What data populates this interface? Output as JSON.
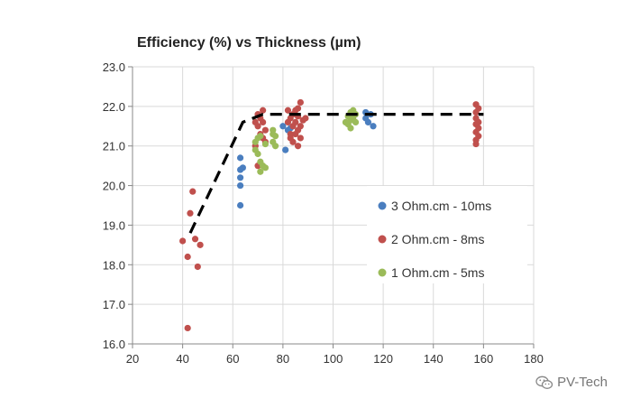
{
  "chart_data": {
    "type": "scatter",
    "title": "Efficiency (%) vs Thickness (µm)",
    "xlabel": "",
    "ylabel": "",
    "xlim": [
      20,
      180
    ],
    "ylim": [
      16.0,
      23.0
    ],
    "x_ticks": [
      "20",
      "40",
      "60",
      "80",
      "100",
      "120",
      "140",
      "160",
      "180"
    ],
    "y_ticks": [
      "16.0",
      "17.0",
      "18.0",
      "19.0",
      "20.0",
      "21.0",
      "22.0",
      "23.0"
    ],
    "grid": true,
    "legend_position": "right",
    "series": [
      {
        "name": "3 Ohm.cm - 10ms",
        "color": "#4a7ebf",
        "points": [
          [
            63,
            20.7
          ],
          [
            63,
            20.4
          ],
          [
            64,
            20.45
          ],
          [
            63,
            20.2
          ],
          [
            63,
            20.0
          ],
          [
            63,
            19.5
          ],
          [
            80,
            21.5
          ],
          [
            81,
            20.9
          ],
          [
            82,
            21.4
          ],
          [
            83,
            21.45
          ],
          [
            113,
            21.85
          ],
          [
            113,
            21.7
          ],
          [
            114,
            21.6
          ],
          [
            115,
            21.8
          ],
          [
            116,
            21.5
          ]
        ]
      },
      {
        "name": "2 Ohm.cm - 8ms",
        "color": "#c0504d",
        "points": [
          [
            40,
            18.6
          ],
          [
            42,
            18.2
          ],
          [
            43,
            19.3
          ],
          [
            44,
            19.85
          ],
          [
            45,
            18.65
          ],
          [
            46,
            17.95
          ],
          [
            47,
            18.5
          ],
          [
            42,
            16.4
          ],
          [
            69,
            21.0
          ],
          [
            69,
            21.6
          ],
          [
            70,
            21.8
          ],
          [
            70,
            21.5
          ],
          [
            71,
            21.3
          ],
          [
            71,
            21.7
          ],
          [
            72,
            21.2
          ],
          [
            72,
            21.6
          ],
          [
            73,
            21.1
          ],
          [
            70,
            20.5
          ],
          [
            72,
            21.9
          ],
          [
            73,
            21.4
          ],
          [
            82,
            21.6
          ],
          [
            82,
            21.9
          ],
          [
            83,
            21.3
          ],
          [
            83,
            21.7
          ],
          [
            84,
            21.5
          ],
          [
            84,
            21.8
          ],
          [
            84,
            21.1
          ],
          [
            85,
            21.6
          ],
          [
            85,
            21.9
          ],
          [
            85,
            21.3
          ],
          [
            86,
            21.4
          ],
          [
            86,
            21.75
          ],
          [
            86,
            21.95
          ],
          [
            87,
            21.5
          ],
          [
            87,
            21.2
          ],
          [
            87,
            22.1
          ],
          [
            88,
            21.65
          ],
          [
            89,
            21.7
          ],
          [
            83,
            21.2
          ],
          [
            86,
            21.0
          ],
          [
            157,
            22.05
          ],
          [
            157,
            21.85
          ],
          [
            157,
            21.7
          ],
          [
            157,
            21.55
          ],
          [
            157,
            21.35
          ],
          [
            157,
            21.05
          ],
          [
            158,
            21.95
          ],
          [
            158,
            21.6
          ],
          [
            158,
            21.45
          ],
          [
            158,
            21.25
          ],
          [
            157,
            21.15
          ]
        ]
      },
      {
        "name": "1 Ohm.cm - 5ms",
        "color": "#9bbb59",
        "points": [
          [
            69,
            21.1
          ],
          [
            69,
            20.9
          ],
          [
            70,
            21.2
          ],
          [
            70,
            20.8
          ],
          [
            71,
            20.6
          ],
          [
            71,
            20.35
          ],
          [
            72,
            20.5
          ],
          [
            73,
            21.05
          ],
          [
            73,
            20.45
          ],
          [
            71,
            21.25
          ],
          [
            76,
            21.3
          ],
          [
            76,
            21.1
          ],
          [
            77,
            21.25
          ],
          [
            77,
            21.0
          ],
          [
            76,
            21.4
          ],
          [
            105,
            21.6
          ],
          [
            106,
            21.75
          ],
          [
            106,
            21.55
          ],
          [
            107,
            21.85
          ],
          [
            107,
            21.65
          ],
          [
            108,
            21.9
          ],
          [
            108,
            21.7
          ],
          [
            109,
            21.6
          ],
          [
            107,
            21.45
          ],
          [
            109,
            21.8
          ]
        ]
      }
    ],
    "trend_line": [
      [
        43,
        18.8
      ],
      [
        64,
        21.6
      ],
      [
        72,
        21.8
      ],
      [
        160,
        21.8
      ]
    ]
  },
  "watermark": {
    "text": "PV-Tech",
    "icon": "wechat-icon"
  }
}
